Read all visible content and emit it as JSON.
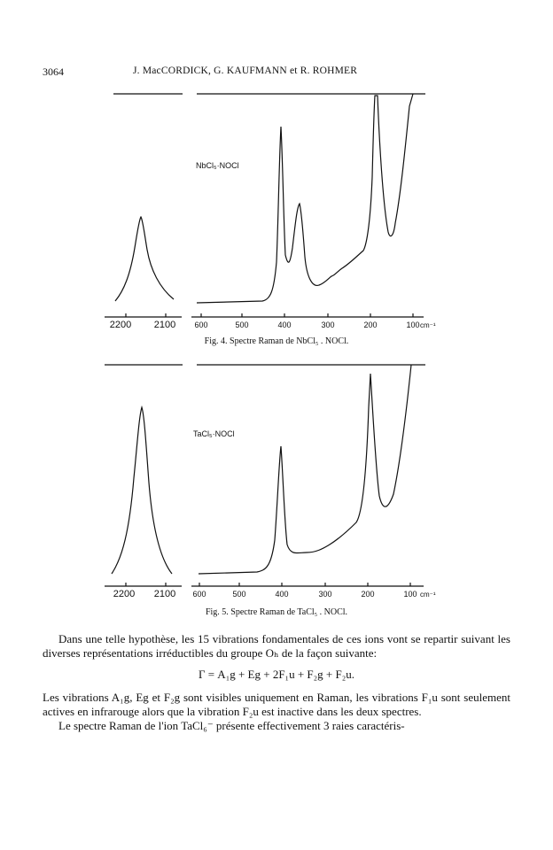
{
  "header": {
    "page_number": "3064",
    "authors": "J. MacCORDICK, G. KAUFMANN et R. ROHMER"
  },
  "figures": [
    {
      "caption": "Fig. 4. Spectre Raman de NbCl₅ . NOCl.",
      "compound_label": "NbCl₅·NOCl",
      "left_axis_ticks": [
        "2200",
        "2100"
      ],
      "right_axis_ticks": [
        "600",
        "500",
        "400",
        "300",
        "200",
        "100"
      ],
      "unit": "cm⁻¹"
    },
    {
      "caption": "Fig. 5. Spectre Raman de TaCl₅ . NOCl.",
      "compound_label": "TaCl₅·NOCl",
      "left_axis_ticks": [
        "2200",
        "2100"
      ],
      "right_axis_ticks": [
        "600",
        "500",
        "400",
        "300",
        "200",
        "100"
      ],
      "unit": "cm⁻¹"
    }
  ],
  "text": {
    "para1": "Dans une telle hypothèse, les 15 vibrations fondamentales de ces ions vont se repartir suivant les diverses représentations irréductibles du groupe Oₕ de la façon suivante:",
    "formula": "Γ = A₁g + Eg + 2F₁u + F₂g + F₂u.",
    "para2": "Les vibrations A₁g, Eg et F₂g sont visibles uniquement en Raman, les vibrations F₁u sont seulement actives en infrarouge alors que la vibration F₂u est inactive dans les deux spectres.",
    "para3": "Le spectre Raman de l'ion TaCl₆⁻ présente effectivement 3 raies caractéris-"
  }
}
